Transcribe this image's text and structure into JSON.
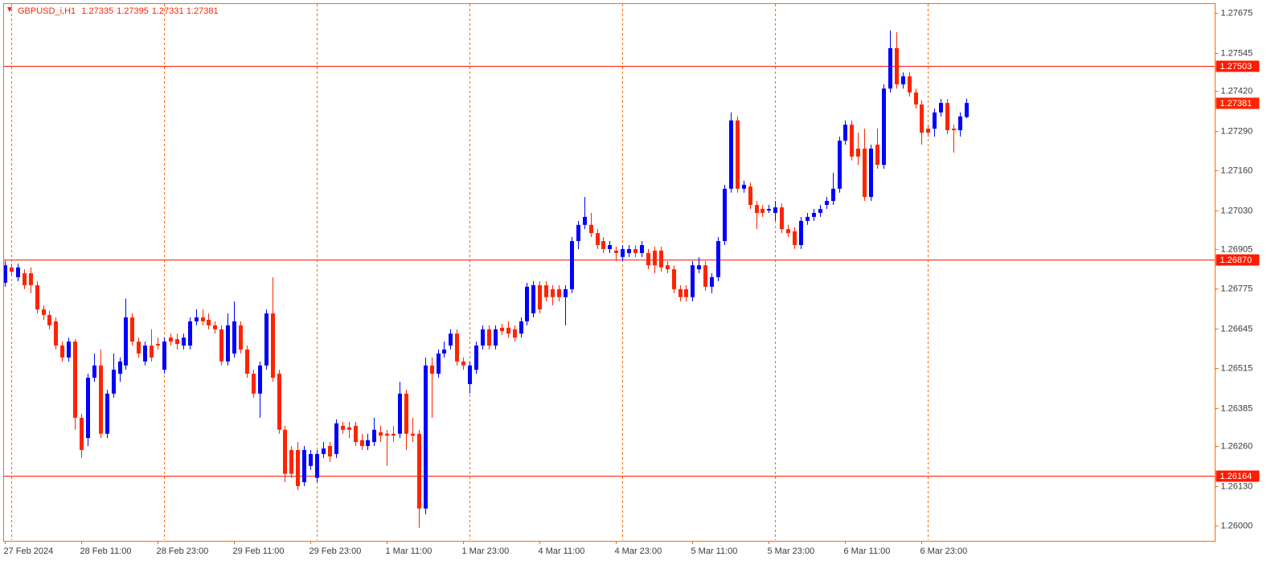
{
  "chart_data": {
    "type": "candlestick",
    "title": "GBPUSD_i,H1",
    "bull_color": "#0000ff",
    "bear_color": "#ff2400",
    "grid_color": "#ff6a00",
    "level_color": "#ff1a00",
    "categories": [
      "27 Feb 2024",
      null,
      null,
      null,
      null,
      null,
      null,
      null,
      null,
      null,
      null,
      null,
      "28 Feb 11:00",
      null,
      null,
      null,
      null,
      null,
      null,
      null,
      null,
      null,
      null,
      null,
      "28 Feb 23:00",
      null,
      null,
      null,
      null,
      null,
      null,
      null,
      null,
      null,
      null,
      null,
      "29 Feb 11:00",
      null,
      null,
      null,
      null,
      null,
      null,
      null,
      null,
      null,
      null,
      null,
      "29 Feb 23:00",
      null,
      null,
      null,
      null,
      null,
      null,
      null,
      null,
      null,
      null,
      null,
      "1 Mar 11:00",
      null,
      null,
      null,
      null,
      null,
      null,
      null,
      null,
      null,
      null,
      null,
      "1 Mar 23:00",
      null,
      null,
      null,
      null,
      null,
      null,
      null,
      null,
      null,
      null,
      null,
      "4 Mar 11:00",
      null,
      null,
      null,
      null,
      null,
      null,
      null,
      null,
      null,
      null,
      null,
      "4 Mar 23:00",
      null,
      null,
      null,
      null,
      null,
      null,
      null,
      null,
      null,
      null,
      null,
      "5 Mar 11:00",
      null,
      null,
      null,
      null,
      null,
      null,
      null,
      null,
      null,
      null,
      null,
      "5 Mar 23:00",
      null,
      null,
      null,
      null,
      null,
      null,
      null,
      null,
      null,
      null,
      null,
      "6 Mar 11:00",
      null,
      null,
      null,
      null,
      null,
      null,
      null,
      null,
      null,
      null,
      null,
      "6 Mar 23:00",
      null,
      null,
      null,
      null,
      null,
      null,
      null
    ],
    "open": [
      1.26794,
      1.26844,
      1.26812,
      1.26825,
      1.26825,
      1.26786,
      1.26707,
      1.26689,
      1.26668,
      1.26589,
      1.2655,
      1.26602,
      1.26353,
      1.26287,
      1.26484,
      1.26524,
      1.26301,
      1.26432,
      1.26497,
      1.26524,
      1.26681,
      1.26602,
      1.26537,
      1.26589,
      1.26594,
      1.2651,
      1.26615,
      1.2661,
      1.26589,
      1.26589,
      1.26668,
      1.26681,
      1.26673,
      1.26655,
      1.26642,
      1.26537,
      1.26563,
      1.26655,
      1.26576,
      1.26497,
      1.26432,
      1.26524,
      1.26694,
      1.26497,
      1.26314,
      1.26248,
      1.26248,
      1.26143,
      1.26196,
      1.26157,
      1.26235,
      1.26261,
      1.26235,
      1.26327,
      1.26322,
      1.26327,
      1.2628,
      1.26261,
      1.26274,
      1.26306,
      1.26301,
      1.26301,
      1.26301,
      1.26432,
      1.26301,
      1.26301,
      1.26057,
      1.26524,
      1.26497,
      1.26563,
      1.26589,
      1.26628,
      1.26537,
      1.26463,
      1.2651,
      1.26589,
      1.26642,
      1.26589,
      1.26647,
      1.26647,
      1.26642,
      1.26628,
      1.26668,
      1.26694,
      1.26786,
      1.26786,
      1.26773,
      1.26773,
      1.26747,
      1.26773,
      1.2693,
      1.26983,
      1.26983,
      1.26956,
      1.2693,
      1.26904,
      1.26899,
      1.26878,
      1.26891,
      1.26904,
      1.26891,
      1.26891,
      1.26899,
      1.26899,
      1.26851,
      1.26838,
      1.26773,
      1.26773,
      1.26747,
      1.26838,
      1.26851,
      1.26781,
      1.26812,
      1.2693,
      1.27101,
      1.27324,
      1.27101,
      1.27108,
      1.27048,
      1.27035,
      1.2703,
      1.27022,
      1.2704,
      1.26969,
      1.26962,
      1.26917,
      1.26996,
      1.27009,
      1.27022,
      1.27048,
      1.27061,
      1.27101,
      1.27258,
      1.2731,
      1.27232,
      1.27232,
      1.27074,
      1.27245,
      1.27179,
      1.27428,
      1.2756,
      1.27442,
      1.27468,
      1.27415,
      1.27376,
      1.27297,
      1.27297,
      1.2735,
      1.27381,
      1.27297,
      1.27292,
      1.27335
    ],
    "high": [
      1.26865,
      1.26857,
      1.26857,
      1.26838,
      1.26844,
      1.26799,
      1.2672,
      1.26702,
      1.26681,
      1.26602,
      1.26615,
      1.2661,
      1.26366,
      1.26497,
      1.26563,
      1.26576,
      1.26445,
      1.26563,
      1.2655,
      1.26742,
      1.26694,
      1.26615,
      1.26602,
      1.26642,
      1.26615,
      1.26615,
      1.26628,
      1.26628,
      1.26628,
      1.26681,
      1.26707,
      1.26707,
      1.26694,
      1.26668,
      1.26655,
      1.26694,
      1.26733,
      1.26668,
      1.26589,
      1.2651,
      1.26537,
      1.26707,
      1.26812,
      1.2651,
      1.26327,
      1.26261,
      1.26274,
      1.26261,
      1.26248,
      1.26248,
      1.26274,
      1.26274,
      1.26348,
      1.2634,
      1.2634,
      1.2634,
      1.26301,
      1.26301,
      1.26353,
      1.26327,
      1.26314,
      1.26327,
      1.26471,
      1.26445,
      1.26353,
      1.26314,
      1.2655,
      1.2655,
      1.26576,
      1.26602,
      1.26642,
      1.26642,
      1.2655,
      1.26537,
      1.26602,
      1.26655,
      1.26655,
      1.26655,
      1.2666,
      1.26668,
      1.26655,
      1.26681,
      1.26794,
      1.26799,
      1.26799,
      1.26799,
      1.26786,
      1.26786,
      1.26786,
      1.26943,
      1.26996,
      1.27074,
      1.27022,
      1.26969,
      1.26943,
      1.2693,
      1.26912,
      1.26917,
      1.26917,
      1.26917,
      1.2693,
      1.26904,
      1.26912,
      1.26912,
      1.26865,
      1.26851,
      1.26786,
      1.26786,
      1.26865,
      1.26878,
      1.26865,
      1.26825,
      1.26943,
      1.27114,
      1.2735,
      1.27337,
      1.27127,
      1.27121,
      1.27061,
      1.27048,
      1.27048,
      1.27061,
      1.27053,
      1.26983,
      1.26975,
      1.27009,
      1.27022,
      1.27035,
      1.27048,
      1.27074,
      1.27153,
      1.27271,
      1.27324,
      1.27324,
      1.27284,
      1.27297,
      1.27245,
      1.27297,
      1.27442,
      1.27618,
      1.27612,
      1.27481,
      1.27481,
      1.27428,
      1.27389,
      1.2731,
      1.27363,
      1.27394,
      1.27394,
      1.2731,
      1.2735,
      1.27395
    ],
    "low": [
      1.26781,
      1.26817,
      1.26799,
      1.26773,
      1.2676,
      1.26694,
      1.26673,
      1.26642,
      1.26576,
      1.26537,
      1.26537,
      1.26314,
      1.26222,
      1.26261,
      1.26471,
      1.26287,
      1.26287,
      1.26419,
      1.26471,
      1.2651,
      1.26589,
      1.2655,
      1.26524,
      1.26537,
      1.26576,
      1.26497,
      1.26589,
      1.26576,
      1.26576,
      1.26576,
      1.26655,
      1.26655,
      1.26642,
      1.26628,
      1.26524,
      1.26524,
      1.2655,
      1.26563,
      1.26484,
      1.26419,
      1.26353,
      1.2651,
      1.26471,
      1.26301,
      1.26143,
      1.26157,
      1.26117,
      1.2613,
      1.26183,
      1.26143,
      1.26222,
      1.26209,
      1.26222,
      1.26301,
      1.26287,
      1.26261,
      1.26248,
      1.26248,
      1.26261,
      1.26274,
      1.26196,
      1.26274,
      1.26287,
      1.26248,
      1.26274,
      1.25994,
      1.26038,
      1.26353,
      1.26484,
      1.2655,
      1.26576,
      1.26524,
      1.2651,
      1.26432,
      1.26497,
      1.26576,
      1.26576,
      1.26576,
      1.26623,
      1.26615,
      1.26602,
      1.26615,
      1.26655,
      1.26681,
      1.26694,
      1.26733,
      1.2672,
      1.26733,
      1.26655,
      1.2676,
      1.26904,
      1.26969,
      1.26943,
      1.26904,
      1.26891,
      1.26891,
      1.26865,
      1.26865,
      1.26878,
      1.26878,
      1.26878,
      1.26838,
      1.26825,
      1.2683,
      1.26825,
      1.2676,
      1.26733,
      1.26733,
      1.26733,
      1.26825,
      1.26768,
      1.2676,
      1.26799,
      1.26917,
      1.27088,
      1.27088,
      1.27088,
      1.27035,
      1.26969,
      1.27009,
      1.27022,
      1.26996,
      1.26956,
      1.26943,
      1.26904,
      1.26904,
      1.26983,
      1.26996,
      1.27009,
      1.27035,
      1.27048,
      1.27088,
      1.27245,
      1.27193,
      1.27179,
      1.27061,
      1.27061,
      1.27166,
      1.27166,
      1.27415,
      1.27428,
      1.27428,
      1.27402,
      1.27363,
      1.27245,
      1.27271,
      1.27271,
      1.27337,
      1.27279,
      1.27219,
      1.27271,
      1.27331
    ],
    "close": [
      1.26851,
      1.2683,
      1.26844,
      1.26786,
      1.26786,
      1.26707,
      1.26689,
      1.26655,
      1.26589,
      1.2655,
      1.26602,
      1.26353,
      1.26248,
      1.26484,
      1.26524,
      1.26301,
      1.26432,
      1.2651,
      1.26537,
      1.26681,
      1.26602,
      1.26563,
      1.26589,
      1.2655,
      1.26589,
      1.26602,
      1.26602,
      1.26594,
      1.26615,
      1.26668,
      1.26681,
      1.26668,
      1.26655,
      1.26642,
      1.26537,
      1.26655,
      1.26668,
      1.26576,
      1.26497,
      1.26432,
      1.26524,
      1.26694,
      1.26484,
      1.26314,
      1.2617,
      1.2617,
      1.2613,
      1.26248,
      1.26235,
      1.26235,
      1.26253,
      1.26227,
      1.26335,
      1.26314,
      1.26314,
      1.26274,
      1.26261,
      1.2628,
      1.26314,
      1.26295,
      1.26295,
      1.26295,
      1.26432,
      1.26301,
      1.26295,
      1.26057,
      1.26524,
      1.26497,
      1.26563,
      1.26576,
      1.26628,
      1.26537,
      1.26524,
      1.26524,
      1.26589,
      1.26642,
      1.26589,
      1.26642,
      1.26636,
      1.26628,
      1.26615,
      1.26668,
      1.26781,
      1.26786,
      1.26707,
      1.26747,
      1.26747,
      1.26747,
      1.26773,
      1.2693,
      1.26983,
      1.27009,
      1.26956,
      1.26917,
      1.26904,
      1.26917,
      1.26891,
      1.26904,
      1.26904,
      1.26891,
      1.26917,
      1.26851,
      1.26851,
      1.26844,
      1.26838,
      1.26773,
      1.26747,
      1.26747,
      1.26851,
      1.26851,
      1.26781,
      1.26812,
      1.2693,
      1.27101,
      1.27324,
      1.27101,
      1.27114,
      1.27048,
      1.27022,
      1.27022,
      1.27035,
      1.2704,
      1.26969,
      1.26956,
      1.26917,
      1.26996,
      1.27009,
      1.27022,
      1.27035,
      1.27061,
      1.27101,
      1.27258,
      1.2731,
      1.27206,
      1.27206,
      1.27074,
      1.27232,
      1.27179,
      1.27428,
      1.2756,
      1.27442,
      1.27468,
      1.27415,
      1.27376,
      1.27284,
      1.27284,
      1.2735,
      1.27381,
      1.27292,
      1.27292,
      1.27337,
      1.27381
    ],
    "ylim": [
      1.25954,
      1.27704
    ],
    "yticks": [
      {
        "value": 1.26,
        "label": "1.26000"
      },
      {
        "value": 1.2613,
        "label": "1.26130"
      },
      {
        "value": 1.2626,
        "label": "1.26260"
      },
      1.26385,
      1.26515,
      1.26645,
      1.26775,
      1.26905,
      {
        "value": 1.2703,
        "label": "1.27030"
      },
      {
        "value": 1.2716,
        "label": "1.27160"
      },
      {
        "value": 1.2729,
        "label": "1.27290"
      },
      {
        "value": 1.2742,
        "label": "1.27420"
      },
      1.27545,
      1.27675
    ],
    "levels": [
      1.27503,
      {
        "value": 1.2687,
        "label": "1.26870"
      },
      1.26164
    ]
  }
}
